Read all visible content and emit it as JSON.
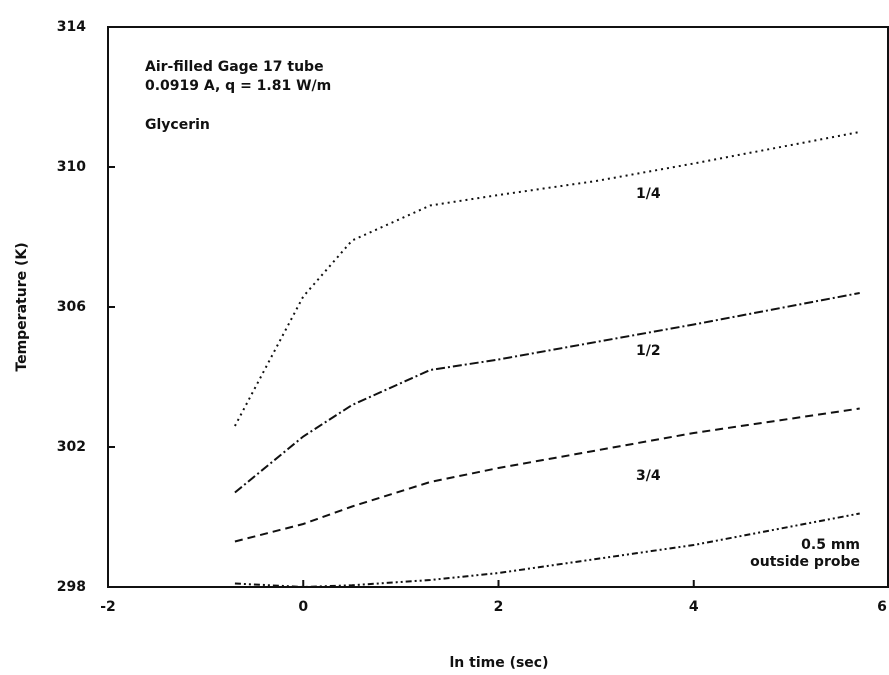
{
  "chart_data": {
    "type": "line",
    "x_label": "ln time (sec)",
    "y_label": "Temperature (K)",
    "annotations": [
      "Air-filled Gage 17 tube",
      "0.0919 A, q = 1.81 W/m",
      "Glycerin"
    ],
    "xlim": [
      -2,
      6
    ],
    "xticks": [
      -2,
      0,
      2,
      4,
      6
    ],
    "ylim": [
      298,
      314
    ],
    "yticks": [
      298,
      302,
      306,
      310,
      314
    ],
    "x": [
      -0.7,
      0,
      0.5,
      1.3,
      2,
      3,
      4,
      5.7
    ],
    "series": [
      {
        "name": "1/4",
        "color": "#111111",
        "values": [
          302.6,
          306.3,
          307.9,
          308.9,
          309.2,
          309.6,
          310.1,
          311.0
        ]
      },
      {
        "name": "1/2",
        "color": "#111111",
        "values": [
          300.7,
          302.3,
          303.2,
          304.2,
          304.5,
          305.0,
          305.5,
          306.4
        ]
      },
      {
        "name": "3/4",
        "color": "#111111",
        "values": [
          299.3,
          299.8,
          300.3,
          301.0,
          301.4,
          301.9,
          302.4,
          303.1
        ]
      },
      {
        "name": "0.5 mm outside probe",
        "color": "#111111",
        "values": [
          298.1,
          298.0,
          298.05,
          298.2,
          298.4,
          298.8,
          299.2,
          300.1
        ]
      }
    ]
  }
}
